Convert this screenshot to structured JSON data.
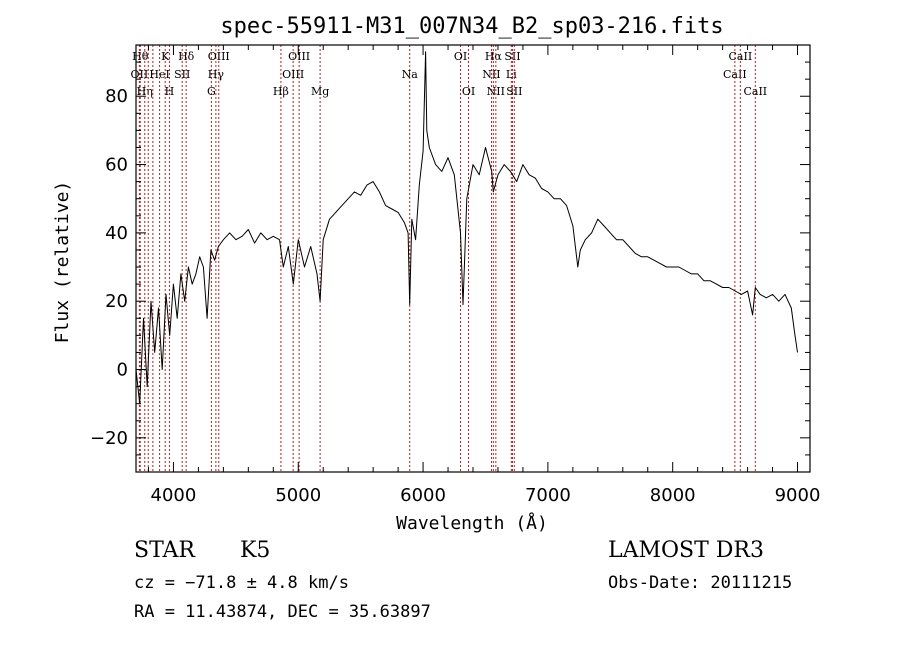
{
  "chart_data": {
    "type": "line",
    "title": "spec-55911-M31_007N34_B2_sp03-216.fits",
    "xlabel": "Wavelength (Å)",
    "ylabel": "Flux (relative)",
    "xlim": [
      3700,
      9100
    ],
    "ylim": [
      -30,
      95
    ],
    "x_ticks": [
      4000,
      5000,
      6000,
      7000,
      8000,
      9000
    ],
    "y_ticks": [
      -20,
      0,
      20,
      40,
      60,
      80
    ],
    "grid": false,
    "line_color": "#000000",
    "marker_color": "#b22222",
    "series": [
      {
        "x": [
          3700,
          3730,
          3760,
          3790,
          3820,
          3850,
          3880,
          3910,
          3940,
          3970,
          4000,
          4030,
          4060,
          4090,
          4120,
          4150,
          4180,
          4210,
          4240,
          4270,
          4300,
          4330,
          4360,
          4400,
          4450,
          4500,
          4550,
          4600,
          4650,
          4700,
          4750,
          4800,
          4850,
          4880,
          4920,
          4960,
          5000,
          5050,
          5100,
          5150,
          5175,
          5200,
          5250,
          5300,
          5350,
          5400,
          5450,
          5500,
          5550,
          5600,
          5650,
          5700,
          5750,
          5800,
          5850,
          5880,
          5893,
          5910,
          5940,
          5970,
          6000,
          6020,
          6030,
          6050,
          6100,
          6150,
          6200,
          6250,
          6300,
          6320,
          6350,
          6400,
          6450,
          6500,
          6550,
          6563,
          6600,
          6650,
          6700,
          6750,
          6800,
          6850,
          6900,
          6950,
          7000,
          7050,
          7100,
          7150,
          7200,
          7240,
          7260,
          7300,
          7350,
          7400,
          7450,
          7500,
          7550,
          7600,
          7650,
          7700,
          7750,
          7800,
          7850,
          7900,
          7950,
          8000,
          8050,
          8100,
          8150,
          8200,
          8250,
          8300,
          8350,
          8400,
          8450,
          8500,
          8550,
          8600,
          8640,
          8662,
          8700,
          8750,
          8800,
          8850,
          8900,
          8950,
          8980,
          9000
        ],
        "y": [
          0,
          -10,
          15,
          -5,
          20,
          5,
          18,
          0,
          22,
          10,
          25,
          15,
          28,
          20,
          30,
          25,
          28,
          33,
          30,
          15,
          35,
          32,
          36,
          38,
          40,
          38,
          39,
          41,
          37,
          40,
          38,
          39,
          38,
          30,
          36,
          25,
          38,
          30,
          36,
          28,
          20,
          38,
          44,
          46,
          48,
          50,
          52,
          51,
          54,
          55,
          52,
          48,
          47,
          46,
          43,
          40,
          19,
          44,
          38,
          54,
          64,
          93,
          70,
          65,
          60,
          58,
          62,
          57,
          40,
          19,
          50,
          60,
          57,
          65,
          58,
          52,
          57,
          60,
          58,
          55,
          60,
          57,
          56,
          53,
          52,
          50,
          50,
          48,
          42,
          30,
          35,
          38,
          40,
          44,
          42,
          40,
          38,
          38,
          36,
          34,
          33,
          33,
          32,
          31,
          30,
          30,
          30,
          29,
          28,
          28,
          26,
          26,
          25,
          24,
          24,
          23,
          22,
          23,
          16,
          24,
          22,
          21,
          22,
          20,
          22,
          18,
          10,
          5
        ]
      }
    ],
    "line_markers": [
      {
        "w": 3734,
        "label": "Hθ",
        "row": 0
      },
      {
        "w": 3727,
        "label": "OII",
        "row": 1
      },
      {
        "w": 3770,
        "label": "Hη",
        "row": 2
      },
      {
        "w": 3798,
        "label": "",
        "row": -1
      },
      {
        "w": 3835,
        "label": "",
        "row": -1
      },
      {
        "w": 3889,
        "label": "HeI",
        "row": 1
      },
      {
        "w": 3934,
        "label": "K",
        "row": 0
      },
      {
        "w": 3968,
        "label": "H",
        "row": 2
      },
      {
        "w": 4070,
        "label": "SII",
        "row": 1
      },
      {
        "w": 4102,
        "label": "Hδ",
        "row": 0
      },
      {
        "w": 4304,
        "label": "G",
        "row": 2
      },
      {
        "w": 4340,
        "label": "Hγ",
        "row": 1
      },
      {
        "w": 4363,
        "label": "OIII",
        "row": 0
      },
      {
        "w": 4861,
        "label": "Hβ",
        "row": 2
      },
      {
        "w": 4959,
        "label": "OIII",
        "row": 1
      },
      {
        "w": 5007,
        "label": "OIII",
        "row": 0
      },
      {
        "w": 5175,
        "label": "Mg",
        "row": 2
      },
      {
        "w": 5893,
        "label": "Na",
        "row": 1
      },
      {
        "w": 6300,
        "label": "OI",
        "row": 0
      },
      {
        "w": 6364,
        "label": "OI",
        "row": 2
      },
      {
        "w": 6548,
        "label": "NII",
        "row": 1
      },
      {
        "w": 6563,
        "label": "Hα",
        "row": 0
      },
      {
        "w": 6583,
        "label": "NII",
        "row": 2
      },
      {
        "w": 6707,
        "label": "Li",
        "row": 1
      },
      {
        "w": 6716,
        "label": "SII",
        "row": 0
      },
      {
        "w": 6731,
        "label": "SII",
        "row": 2
      },
      {
        "w": 8498,
        "label": "CaII",
        "row": 1
      },
      {
        "w": 8542,
        "label": "CaII",
        "row": 0
      },
      {
        "w": 8662,
        "label": "CaII",
        "row": 2
      }
    ]
  },
  "info": {
    "object_class": "STAR",
    "subclass": "K5",
    "survey": "LAMOST DR3",
    "velocity": "cz = −71.8 ± 4.8 km/s",
    "obs_date": "Obs-Date: 20111215",
    "coords": "RA =  11.43874, DEC =  35.63897"
  }
}
